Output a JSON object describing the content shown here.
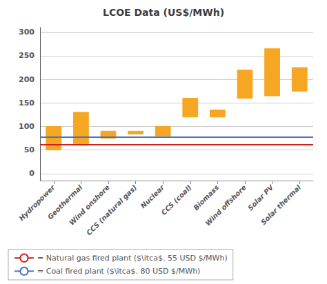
{
  "chart_data": {
    "type": "floating_bar",
    "title": "LCOE Data (US$/MWh)",
    "categories": [
      "Hydropower",
      "Geothermal",
      "Wind onshore",
      "CCS (natural gas)",
      "Nuclear",
      "CCS (coal)",
      "Biomass",
      "Wind offshore",
      "Solar PV",
      "Solar thermal"
    ],
    "low": [
      50,
      60,
      75,
      84,
      80,
      120,
      120,
      160,
      165,
      175
    ],
    "high": [
      100,
      130,
      90,
      90,
      100,
      160,
      135,
      220,
      265,
      225
    ],
    "color": "#F5A623",
    "lines": [
      {
        "name": "= Natural gas fired plant ($\\itca$. 55 USD $/MWh)",
        "y": 62,
        "color": "#CC2222"
      },
      {
        "name": "= Coal fired plant ($\\itca$. 80 USD $/MWh)",
        "y": 78,
        "color": "#4472C4"
      }
    ],
    "ylim": [
      -15,
      310
    ],
    "yticks": [
      0,
      50,
      100,
      150,
      200,
      250,
      300
    ],
    "grid": true,
    "legend": "bottom"
  }
}
